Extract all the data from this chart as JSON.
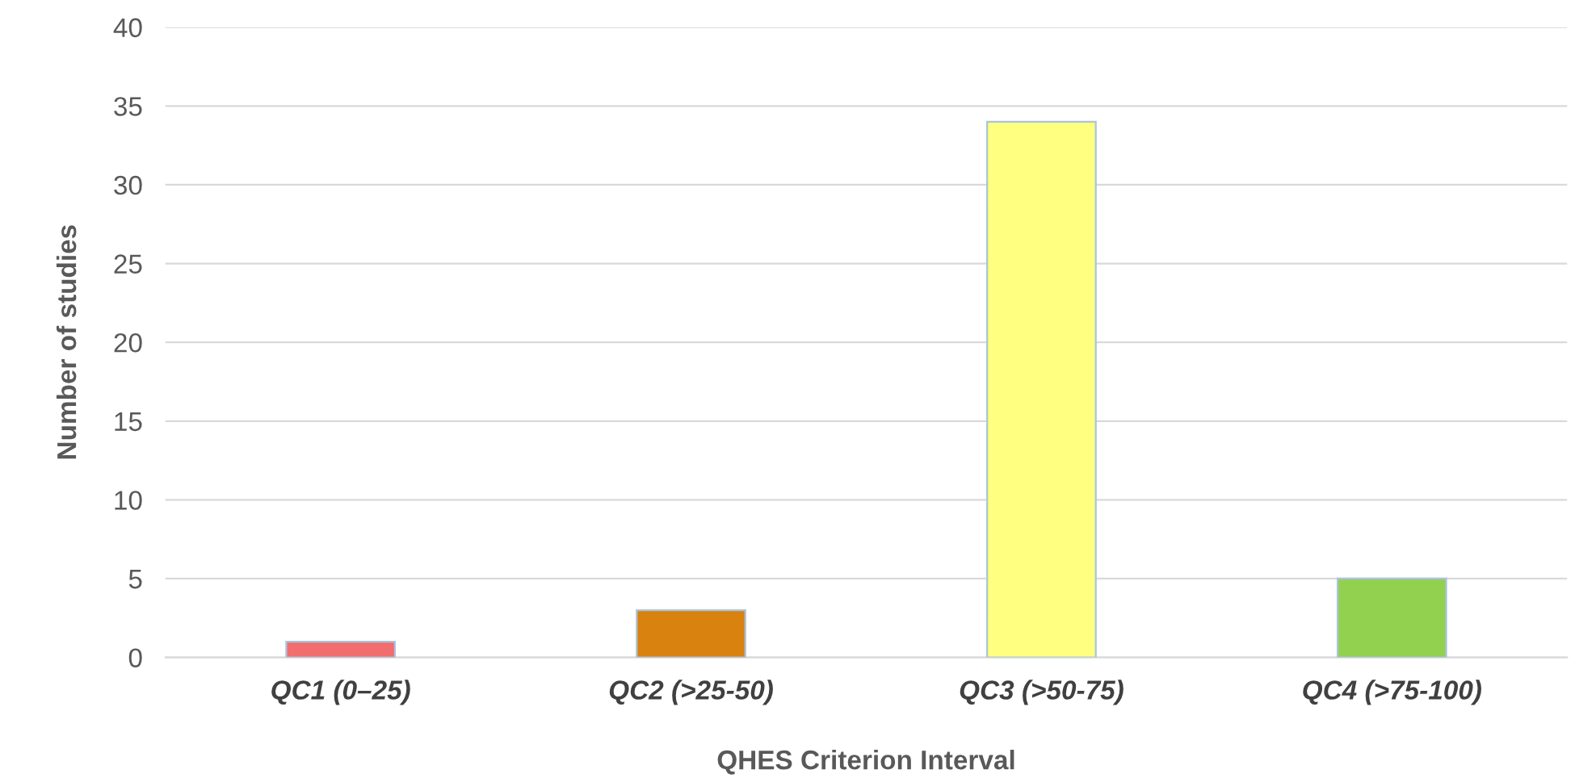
{
  "chart_data": {
    "type": "bar",
    "xlabel": "QHES Criterion Interval",
    "ylabel": "Number of studies",
    "categories": [
      "QC1 (0–25)",
      "QC2 (>25-50)",
      "QC3 (>50-75)",
      "QC4 (>75-100)"
    ],
    "values": [
      1,
      3,
      34,
      5
    ],
    "colors": [
      "#f26d6d",
      "#d9820f",
      "#ffff80",
      "#92d050"
    ],
    "ylim": [
      0,
      40
    ],
    "yticks": [
      0,
      5,
      10,
      15,
      20,
      25,
      30,
      35,
      40
    ],
    "grid": "y",
    "legend": false
  }
}
